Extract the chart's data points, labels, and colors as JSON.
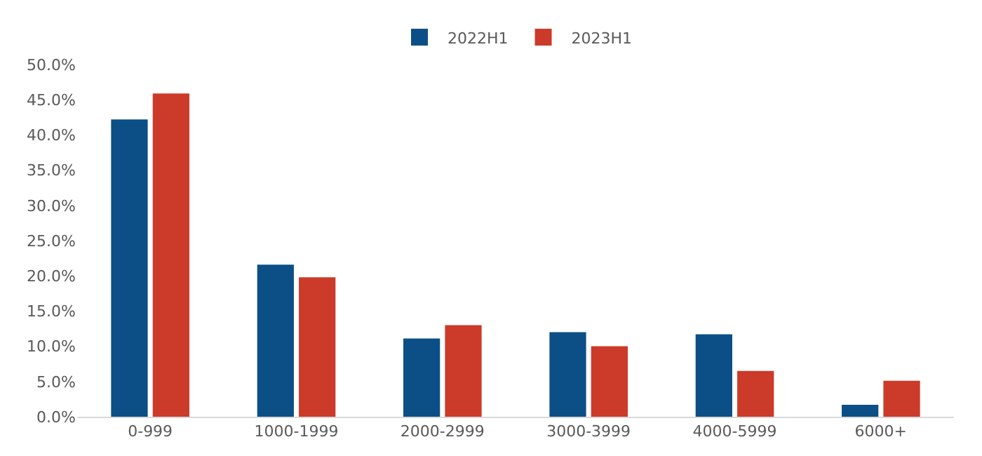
{
  "chart_data": {
    "type": "bar",
    "categories": [
      "0-999",
      "1000-1999",
      "2000-2999",
      "3000-3999",
      "4000-5999",
      "6000+"
    ],
    "series": [
      {
        "name": "2022H1",
        "color": "#0b4f86",
        "values": [
          42.2,
          21.6,
          11.1,
          12.0,
          11.7,
          1.7
        ]
      },
      {
        "name": "2023H1",
        "color": "#cc3a29",
        "values": [
          45.9,
          19.8,
          13.0,
          10.0,
          6.5,
          5.1
        ]
      }
    ],
    "ylim": [
      0,
      50
    ],
    "yticks": [
      {
        "value": 0,
        "label": "0.0%"
      },
      {
        "value": 5,
        "label": "5.0%"
      },
      {
        "value": 10,
        "label": "10.0%"
      },
      {
        "value": 15,
        "label": "15.0%"
      },
      {
        "value": 20,
        "label": "20.0%"
      },
      {
        "value": 25,
        "label": "25.0%"
      },
      {
        "value": 30,
        "label": "30.0%"
      },
      {
        "value": 35,
        "label": "35.0%"
      },
      {
        "value": 40,
        "label": "40.0%"
      },
      {
        "value": 45,
        "label": "45.0%"
      },
      {
        "value": 50,
        "label": "50.0%"
      }
    ],
    "grid": false,
    "legend": "top"
  }
}
